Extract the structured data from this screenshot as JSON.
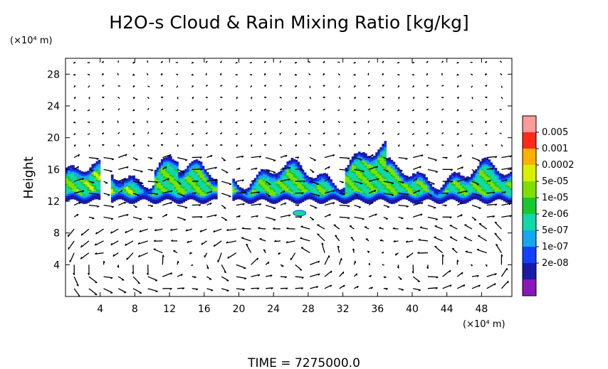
{
  "chart_data": {
    "type": "heatmap",
    "title": "H2O-s Cloud & Rain Mixing Ratio [kg/kg]",
    "ylabel": "Height",
    "y_unit": "(×10⁴ m)",
    "x_unit": "(×10⁴ m)",
    "xlim": [
      0,
      51.5
    ],
    "ylim": [
      0,
      30
    ],
    "x_ticks": [
      "4",
      "8",
      "12",
      "16",
      "20",
      "24",
      "28",
      "32",
      "36",
      "40",
      "44",
      "48"
    ],
    "y_ticks": [
      "4",
      "8",
      "12",
      "16",
      "20",
      "24",
      "28"
    ],
    "colorbar": {
      "labels": [
        "0.005",
        "0.001",
        "0.0002",
        "5e-05",
        "1e-05",
        "2e-06",
        "5e-07",
        "1e-07",
        "2e-08"
      ],
      "colors": [
        "#ff9a9a",
        "#ff2a1a",
        "#ffb000",
        "#d8f000",
        "#7ee000",
        "#18c830",
        "#10d8a8",
        "#14a8f0",
        "#1240ff",
        "#1a1aa8",
        "#8a18b8"
      ]
    },
    "cloud_layer": {
      "base_height": 12,
      "top_height_range": [
        15,
        19
      ],
      "gaps_x": [
        [
          3.8,
          5.0
        ],
        [
          17.5,
          19.0
        ]
      ],
      "isolated_patch": {
        "x": 27,
        "y": 10.5
      }
    },
    "time_label": "TIME = 7275000.0"
  },
  "colors": {
    "background": "#ffffff",
    "axes": "#000000",
    "vectors": "#000000"
  }
}
